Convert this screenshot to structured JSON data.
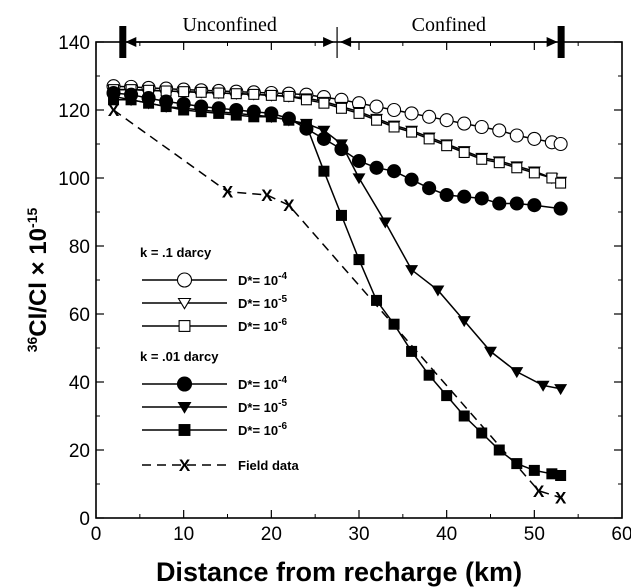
{
  "chart_data": {
    "type": "line",
    "xlabel": "Distance from recharge (km)",
    "ylabel_main": "Cl/Cl × 10",
    "ylabel_sup": "36",
    "ylabel_exp": "-15",
    "xlim": [
      0,
      60
    ],
    "ylim": [
      0,
      140
    ],
    "xticks": [
      0,
      10,
      20,
      30,
      40,
      50,
      60
    ],
    "yticks": [
      0,
      20,
      40,
      60,
      80,
      100,
      120,
      140
    ],
    "grid": false,
    "legend_position": "left-middle",
    "regions": [
      {
        "label": "Unconfined",
        "x_start": 3,
        "x_end": 27.5
      },
      {
        "label": "Confined",
        "x_start": 27.5,
        "x_end": 53
      }
    ],
    "legend_groups": [
      {
        "title": "k = .1 darcy",
        "series_indices": [
          0,
          1,
          2
        ]
      },
      {
        "title": "k = .01 darcy",
        "series_indices": [
          3,
          4,
          5
        ]
      },
      {
        "title": "",
        "series_indices": [
          6
        ]
      }
    ],
    "series": [
      {
        "name": "D*= 10",
        "exp": "-4",
        "marker": "circle-open",
        "dash": "solid",
        "x": [
          2,
          4,
          6,
          8,
          10,
          12,
          14,
          16,
          18,
          20,
          22,
          24,
          26,
          28,
          30,
          32,
          34,
          36,
          38,
          40,
          42,
          44,
          46,
          48,
          50,
          52,
          53
        ],
        "y": [
          127,
          126.8,
          126.5,
          126.3,
          126,
          125.8,
          125.6,
          125.4,
          125.2,
          125,
          124.8,
          124.5,
          123.8,
          123,
          122,
          121,
          120,
          119,
          118,
          117,
          116,
          115,
          114,
          112.5,
          111.5,
          110.5,
          110
        ]
      },
      {
        "name": "D*= 10",
        "exp": "-5",
        "marker": "triangle-down-open",
        "dash": "solid",
        "x": [
          2,
          4,
          6,
          8,
          10,
          12,
          14,
          16,
          18,
          20,
          22,
          24,
          26,
          28,
          30,
          32,
          34,
          36,
          38,
          40,
          42,
          44,
          46,
          48,
          50,
          52,
          53
        ],
        "y": [
          126,
          126,
          125.8,
          125.6,
          125.4,
          125.2,
          125,
          124.8,
          124.6,
          124.3,
          124,
          123.5,
          122.5,
          121,
          119.5,
          117.5,
          115.5,
          114,
          112,
          110,
          108,
          106,
          105,
          103.5,
          102,
          100,
          99
        ]
      },
      {
        "name": "D*= 10",
        "exp": "-6",
        "marker": "square-open",
        "dash": "solid",
        "x": [
          2,
          4,
          6,
          8,
          10,
          12,
          14,
          16,
          18,
          20,
          22,
          24,
          26,
          28,
          30,
          32,
          34,
          36,
          38,
          40,
          42,
          44,
          46,
          48,
          50,
          52,
          53
        ],
        "y": [
          126,
          126,
          125.8,
          125.6,
          125.4,
          125.2,
          125,
          124.8,
          124.6,
          124.3,
          124,
          123,
          122,
          120.5,
          119,
          117,
          115,
          113.5,
          111.5,
          109.5,
          107.5,
          105.5,
          104.5,
          103,
          101.5,
          100,
          98.5
        ]
      },
      {
        "name": "D*= 10",
        "exp": "-4",
        "marker": "circle-filled",
        "dash": "solid",
        "x": [
          2,
          4,
          6,
          8,
          10,
          12,
          14,
          16,
          18,
          20,
          22,
          24,
          26,
          28,
          30,
          32,
          34,
          36,
          38,
          40,
          42,
          44,
          46,
          48,
          50,
          53
        ],
        "y": [
          125,
          124.5,
          123.5,
          122.5,
          121.8,
          121,
          120.5,
          120,
          119.5,
          119,
          117.5,
          114.5,
          111.5,
          108.5,
          105,
          103,
          102,
          99.5,
          97,
          95,
          94.5,
          94,
          92.5,
          92.5,
          92,
          91
        ]
      },
      {
        "name": "D*= 10",
        "exp": "-5",
        "marker": "triangle-down-filled",
        "dash": "solid",
        "x": [
          2,
          4,
          6,
          8,
          10,
          12,
          14,
          16,
          18,
          20,
          22,
          24,
          26,
          28,
          30,
          33,
          36,
          39,
          42,
          45,
          48,
          51,
          53
        ],
        "y": [
          124,
          123,
          122,
          121,
          120.5,
          120,
          119.5,
          119,
          118.5,
          118,
          117,
          116,
          114,
          110,
          100,
          87,
          73,
          67,
          58,
          49,
          43,
          39,
          38
        ]
      },
      {
        "name": "D*= 10",
        "exp": "-6",
        "marker": "square-filled",
        "dash": "solid",
        "x": [
          2,
          4,
          6,
          8,
          10,
          12,
          14,
          16,
          18,
          20,
          22,
          24,
          26,
          28,
          30,
          32,
          34,
          36,
          38,
          40,
          42,
          44,
          46,
          48,
          50,
          52,
          53
        ],
        "y": [
          123,
          123,
          122,
          121,
          120,
          119.5,
          119,
          118.5,
          118,
          118,
          117,
          115.5,
          102,
          89,
          76,
          64,
          57,
          49,
          42,
          36,
          30,
          25,
          20,
          16,
          14,
          13,
          12.5
        ]
      },
      {
        "name": "Field data",
        "marker": "x",
        "dash": "dashed",
        "x": [
          2,
          15,
          19.5,
          22,
          50.5,
          53
        ],
        "y": [
          120,
          96,
          95,
          92,
          8,
          6
        ]
      }
    ]
  }
}
